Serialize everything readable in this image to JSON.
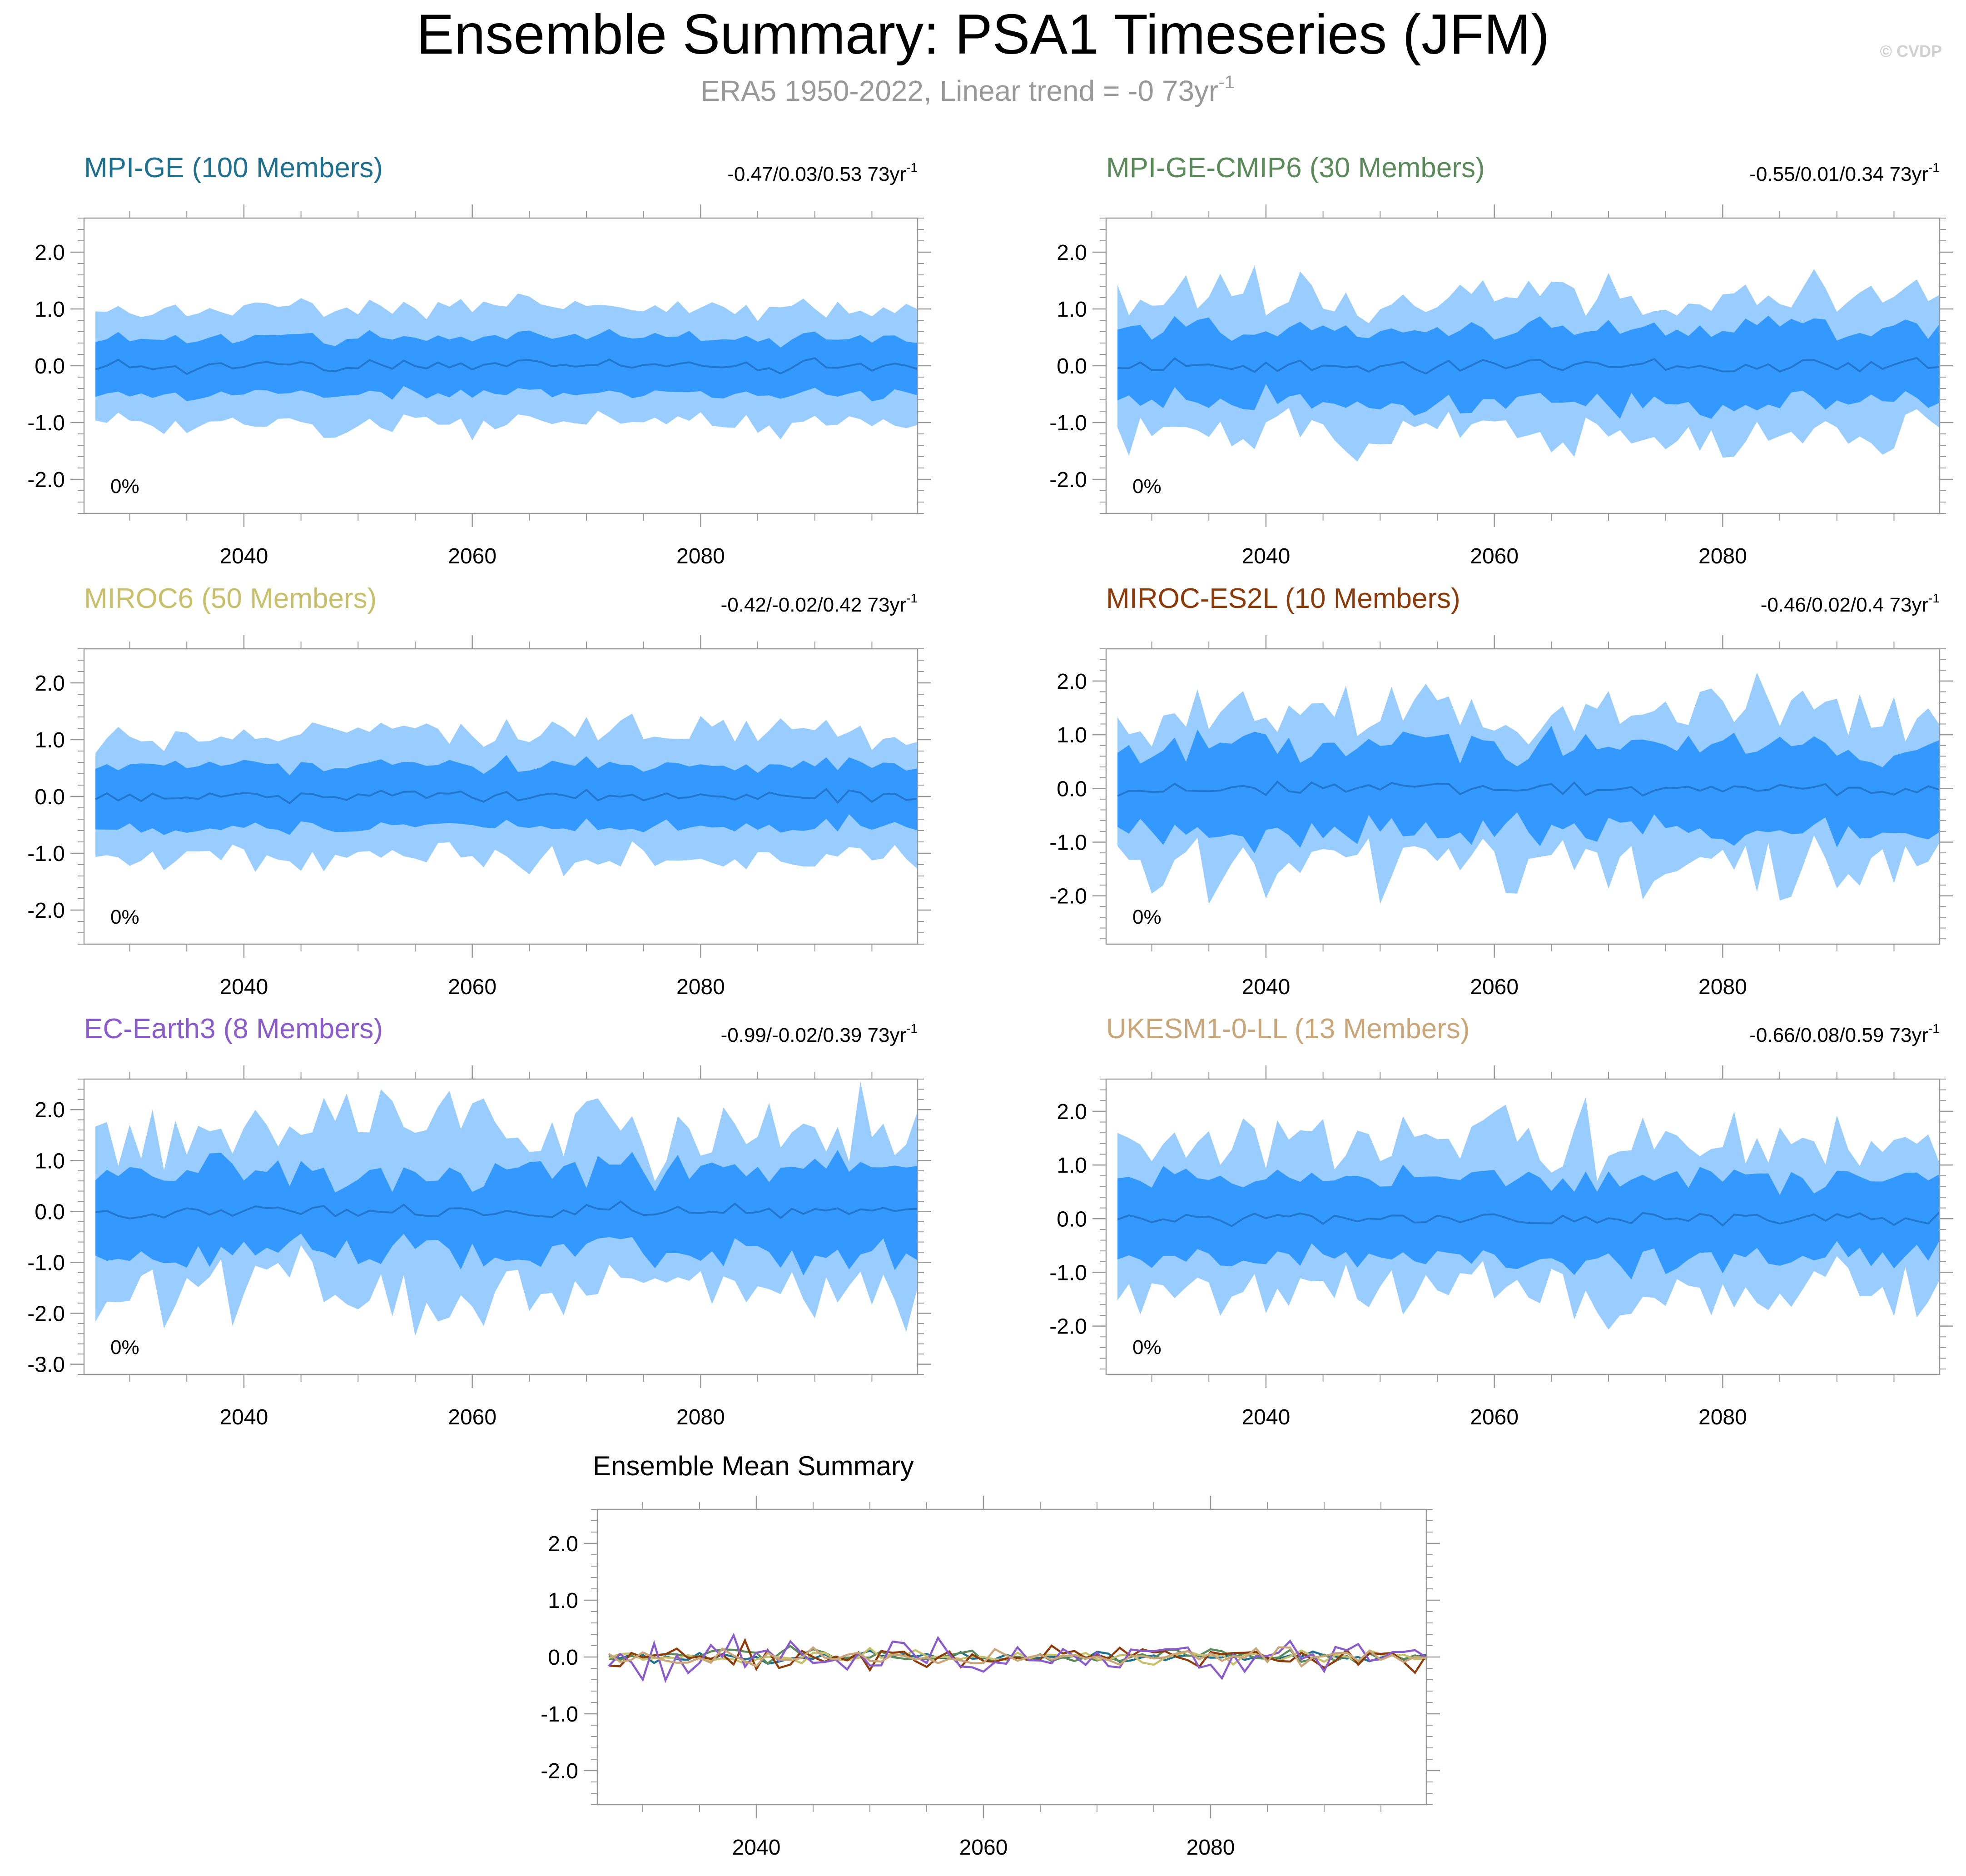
{
  "figure": {
    "title": "Ensemble Summary: PSA1 Timeseries (JFM)",
    "subtitle_main": "ERA5 1950-2022, Linear trend = -0 73yr",
    "subtitle_sup": "-1",
    "copyright": "© CVDP"
  },
  "colors": {
    "outer_band": "#99ccff",
    "inner_band": "#3399ff",
    "mean_line": "#2277cc",
    "axis": "#9a9a9a"
  },
  "chart_data": [
    {
      "type": "area",
      "title": "MPI-GE (100 Members)",
      "title_color": "#1f6f8f",
      "trend_text": "-0.47/0.03/0.53 73yr",
      "trend_sup": "-1",
      "percent_label": "0%",
      "x_range": [
        2026,
        2099
      ],
      "ylim": [
        -2.6,
        2.6
      ],
      "xticks": [
        2040,
        2060,
        2080
      ],
      "yticks": [
        2.0,
        1.0,
        0.0,
        -1.0,
        -2.0
      ],
      "ytick_labels": [
        "2.0",
        "1.0",
        "0.0",
        "-1.0",
        "-2.0"
      ],
      "outer_amp": 1.0,
      "inner_amp": 0.5,
      "noise": 0.15,
      "seed": 11
    },
    {
      "type": "area",
      "title": "MPI-GE-CMIP6 (30 Members)",
      "title_color": "#5a8a5a",
      "trend_text": "-0.55/0.01/0.34 73yr",
      "trend_sup": "-1",
      "percent_label": "0%",
      "x_range": [
        2026,
        2099
      ],
      "ylim": [
        -2.6,
        2.6
      ],
      "xticks": [
        2040,
        2060,
        2080
      ],
      "yticks": [
        2.0,
        1.0,
        0.0,
        -1.0,
        -2.0
      ],
      "ytick_labels": [
        "2.0",
        "1.0",
        "0.0",
        "-1.0",
        "-2.0"
      ],
      "outer_amp": 1.2,
      "inner_amp": 0.65,
      "noise": 0.35,
      "seed": 23
    },
    {
      "type": "area",
      "title": "MIROC6 (50 Members)",
      "title_color": "#c8bf6a",
      "trend_text": "-0.42/-0.02/0.42 73yr",
      "trend_sup": "-1",
      "percent_label": "0%",
      "x_range": [
        2026,
        2099
      ],
      "ylim": [
        -2.6,
        2.6
      ],
      "xticks": [
        2040,
        2060,
        2080
      ],
      "yticks": [
        2.0,
        1.0,
        0.0,
        -1.0,
        -2.0
      ],
      "ytick_labels": [
        "2.0",
        "1.0",
        "0.0",
        "-1.0",
        "-2.0"
      ],
      "outer_amp": 1.1,
      "inner_amp": 0.55,
      "noise": 0.2,
      "seed": 37
    },
    {
      "type": "area",
      "title": "MIROC-ES2L (10 Members)",
      "title_color": "#8b3a0a",
      "trend_text": "-0.46/0.02/0.4 73yr",
      "trend_sup": "-1",
      "percent_label": "0%",
      "x_range": [
        2026,
        2099
      ],
      "ylim": [
        -2.9,
        2.6
      ],
      "xticks": [
        2040,
        2060,
        2080
      ],
      "yticks": [
        2.0,
        1.0,
        0.0,
        -1.0,
        -2.0
      ],
      "ytick_labels": [
        "2.0",
        "1.0",
        "0.0",
        "-1.0",
        "-2.0"
      ],
      "outer_amp": 1.4,
      "inner_amp": 0.8,
      "noise": 0.45,
      "seed": 53
    },
    {
      "type": "area",
      "title": "EC-Earth3 (8 Members)",
      "title_color": "#8a5cc9",
      "trend_text": "-0.99/-0.02/0.39 73yr",
      "trend_sup": "-1",
      "percent_label": "0%",
      "x_range": [
        2026,
        2099
      ],
      "ylim": [
        -3.2,
        2.6
      ],
      "xticks": [
        2040,
        2060,
        2080
      ],
      "yticks": [
        2.0,
        1.0,
        0.0,
        -1.0,
        -2.0,
        -3.0
      ],
      "ytick_labels": [
        "2.0",
        "1.0",
        "0.0",
        "-1.0",
        "-2.0",
        "-3.0"
      ],
      "outer_amp": 1.5,
      "inner_amp": 0.8,
      "noise": 0.5,
      "seed": 71
    },
    {
      "type": "area",
      "title": "UKESM1-0-LL (13 Members)",
      "title_color": "#c9a67a",
      "trend_text": "-0.66/0.08/0.59 73yr",
      "trend_sup": "-1",
      "percent_label": "0%",
      "x_range": [
        2026,
        2099
      ],
      "ylim": [
        -2.9,
        2.6
      ],
      "xticks": [
        2040,
        2060,
        2080
      ],
      "yticks": [
        2.0,
        1.0,
        0.0,
        -1.0,
        -2.0
      ],
      "ytick_labels": [
        "2.0",
        "1.0",
        "0.0",
        "-1.0",
        "-2.0"
      ],
      "outer_amp": 1.4,
      "inner_amp": 0.75,
      "noise": 0.4,
      "seed": 89
    }
  ],
  "ensemble_mean": {
    "type": "line",
    "title": "Ensemble Mean Summary",
    "x_range": [
      2026,
      2099
    ],
    "ylim": [
      -2.6,
      2.6
    ],
    "xticks": [
      2040,
      2060,
      2080
    ],
    "xtick_labels": [
      "2040",
      "2060",
      "2080"
    ],
    "yticks": [
      2.0,
      1.0,
      0.0,
      -1.0,
      -2.0
    ],
    "ytick_labels": [
      "2.0",
      "1.0",
      "0.0",
      "-1.0",
      "-2.0"
    ],
    "series": [
      {
        "name": "MPI-GE",
        "color": "#1f6f8f",
        "amp": 0.08,
        "seed": 101
      },
      {
        "name": "MPI-GE-CMIP6",
        "color": "#5a8a5a",
        "amp": 0.12,
        "seed": 103
      },
      {
        "name": "MIROC6",
        "color": "#c8bf6a",
        "amp": 0.1,
        "seed": 107
      },
      {
        "name": "MIROC-ES2L",
        "color": "#8b3a0a",
        "amp": 0.22,
        "seed": 109
      },
      {
        "name": "EC-Earth3",
        "color": "#8a5cc9",
        "amp": 0.28,
        "seed": 113
      },
      {
        "name": "UKESM1-0-LL",
        "color": "#c9a67a",
        "amp": 0.14,
        "seed": 127
      }
    ]
  }
}
